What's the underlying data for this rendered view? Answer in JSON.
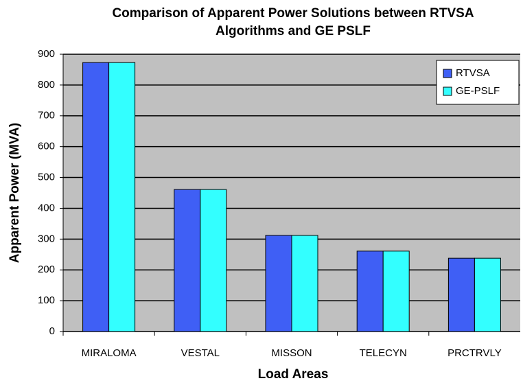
{
  "chart_data": {
    "type": "bar",
    "title": [
      "Comparison of Apparent Power Solutions between RTVSA",
      "Algorithms and GE PSLF"
    ],
    "xlabel": "Load Areas",
    "ylabel": "Apparent Power (MVA)",
    "categories": [
      "MIRALOMA",
      "VESTAL",
      "MISSON",
      "TELECYN",
      "PRCTRVLY"
    ],
    "series": [
      {
        "name": "RTVSA",
        "color": "#3f5ff5",
        "values": [
          873,
          461,
          312,
          261,
          238
        ]
      },
      {
        "name": "GE-PSLF",
        "color": "#33ffff",
        "values": [
          873,
          461,
          312,
          261,
          238
        ]
      }
    ],
    "ylim": [
      0,
      900
    ],
    "yticks": [
      0,
      100,
      200,
      300,
      400,
      500,
      600,
      700,
      800,
      900
    ],
    "grid": true,
    "legend": "upper right"
  }
}
